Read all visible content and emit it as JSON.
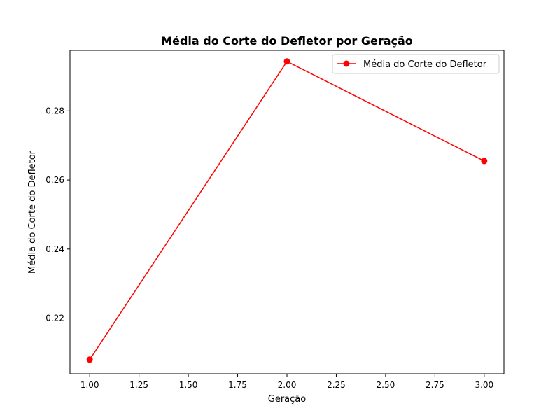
{
  "chart_data": {
    "type": "line",
    "title": "Média do Corte do Defletor por Geração",
    "xlabel": "Geração",
    "ylabel": "Média do Corte do Defletor",
    "xlim": [
      0.9,
      3.1
    ],
    "ylim": [
      0.2039,
      0.2975
    ],
    "x_ticks": [
      1.0,
      1.25,
      1.5,
      1.75,
      2.0,
      2.25,
      2.5,
      2.75,
      3.0
    ],
    "x_tick_labels": [
      "1.00",
      "1.25",
      "1.50",
      "1.75",
      "2.00",
      "2.25",
      "2.50",
      "2.75",
      "3.00"
    ],
    "y_ticks": [
      0.22,
      0.24,
      0.26,
      0.28
    ],
    "y_tick_labels": [
      "0.22",
      "0.24",
      "0.26",
      "0.28"
    ],
    "grid": false,
    "legend_position": "upper right",
    "series": [
      {
        "name": "Média do Corte do Defletor",
        "color": "#ff0000",
        "marker": "circle",
        "x": [
          1,
          2,
          3
        ],
        "y": [
          0.208,
          0.2943,
          0.2655
        ]
      }
    ]
  }
}
